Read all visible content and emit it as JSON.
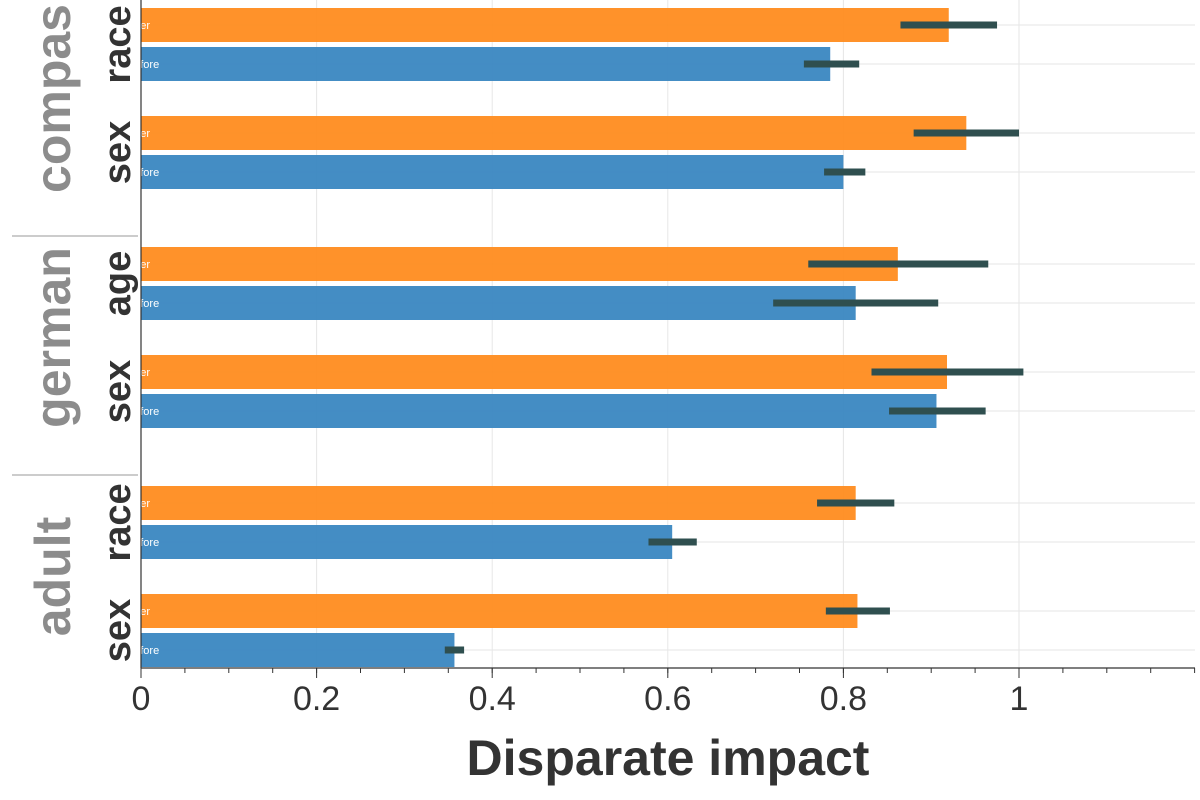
{
  "chart_data": {
    "type": "bar",
    "orientation": "horizontal",
    "xlabel": "Disparate impact",
    "xlim": [
      0,
      1.2
    ],
    "xticks": [
      0,
      0.2,
      0.4,
      0.6,
      0.8,
      1
    ],
    "tick_labels": [
      "0",
      "0.2",
      "0.4",
      "0.6",
      "0.8",
      "1"
    ],
    "series_names": [
      "after",
      "before"
    ],
    "colors": {
      "after": "#ff8c1f",
      "before": "#3a87c1",
      "error": "#2f4f4f"
    },
    "groups": [
      {
        "dataset": "compas",
        "attributes": [
          {
            "attribute": "race",
            "bars": [
              {
                "series": "after",
                "label": "after",
                "value": 0.92,
                "err_low": 0.865,
                "err_high": 0.975
              },
              {
                "series": "before",
                "label": "before",
                "value": 0.785,
                "err_low": 0.755,
                "err_high": 0.818
              }
            ]
          },
          {
            "attribute": "sex",
            "bars": [
              {
                "series": "after",
                "label": "after",
                "value": 0.94,
                "err_low": 0.88,
                "err_high": 1.0
              },
              {
                "series": "before",
                "label": "before",
                "value": 0.8,
                "err_low": 0.778,
                "err_high": 0.825
              }
            ]
          }
        ]
      },
      {
        "dataset": "german",
        "attributes": [
          {
            "attribute": "age",
            "bars": [
              {
                "series": "after",
                "label": "after",
                "value": 0.862,
                "err_low": 0.76,
                "err_high": 0.965
              },
              {
                "series": "before",
                "label": "before",
                "value": 0.814,
                "err_low": 0.72,
                "err_high": 0.908
              }
            ]
          },
          {
            "attribute": "sex",
            "bars": [
              {
                "series": "after",
                "label": "after",
                "value": 0.918,
                "err_low": 0.832,
                "err_high": 1.005
              },
              {
                "series": "before",
                "label": "before",
                "value": 0.906,
                "err_low": 0.852,
                "err_high": 0.962
              }
            ]
          }
        ]
      },
      {
        "dataset": "adult",
        "attributes": [
          {
            "attribute": "race",
            "bars": [
              {
                "series": "after",
                "label": "after",
                "value": 0.814,
                "err_low": 0.77,
                "err_high": 0.858
              },
              {
                "series": "before",
                "label": "before",
                "value": 0.605,
                "err_low": 0.578,
                "err_high": 0.633
              }
            ]
          },
          {
            "attribute": "sex",
            "bars": [
              {
                "series": "after",
                "label": "after",
                "value": 0.816,
                "err_low": 0.78,
                "err_high": 0.853
              },
              {
                "series": "before",
                "label": "before",
                "value": 0.357,
                "err_low": 0.346,
                "err_high": 0.368
              }
            ]
          }
        ]
      }
    ]
  }
}
